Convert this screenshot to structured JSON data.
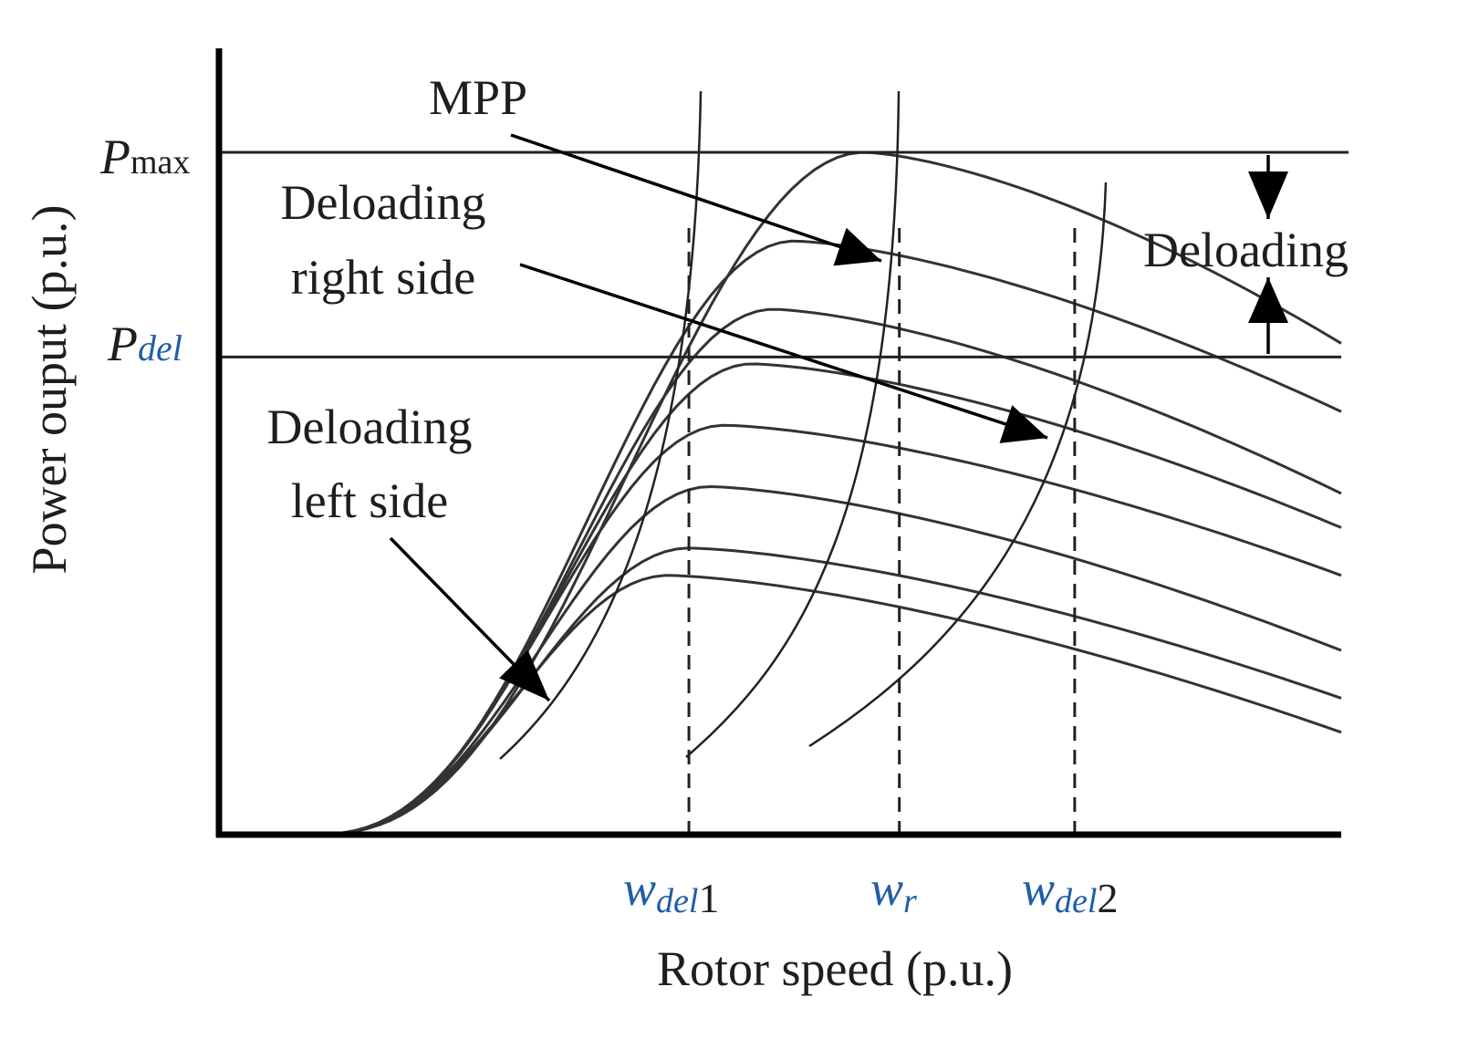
{
  "chart_data": {
    "type": "line",
    "title": "",
    "xlabel": "Rotor speed (p.u.)",
    "ylabel": "Power ouput (p.u.)",
    "xlim": [
      0,
      1.6
    ],
    "ylim": [
      0,
      1.0
    ],
    "grid": false,
    "wind_curves": {
      "count": 8,
      "start_speed": 0.13,
      "peak_powers": [
        1.0,
        0.87,
        0.77,
        0.69,
        0.6,
        0.51,
        0.42,
        0.38
      ],
      "peak_speeds": [
        0.92,
        0.82,
        0.79,
        0.76,
        0.72,
        0.7,
        0.67,
        0.64
      ],
      "end_powers": [
        0.72,
        0.62,
        0.5,
        0.45,
        0.38,
        0.27,
        0.2,
        0.15
      ],
      "end_speed": 1.6
    },
    "reference_lines": {
      "p_max": {
        "value": 1.0,
        "base": "P",
        "sub": "max"
      },
      "p_del": {
        "value": 0.7,
        "base": "P",
        "sub": "del"
      }
    },
    "speed_markers": [
      {
        "value": 0.67,
        "base": "w",
        "sub": "del",
        "suffix": "1"
      },
      {
        "value": 0.97,
        "base": "w",
        "sub": "r",
        "suffix": ""
      },
      {
        "value": 1.22,
        "base": "w",
        "sub": "del",
        "suffix": "2"
      }
    ],
    "annotations": {
      "mpp": "MPP",
      "deloading": "Deloading",
      "right_side_line1": "Deloading",
      "right_side_line2": "right side",
      "left_side_line1": "Deloading",
      "left_side_line2": "left side"
    }
  }
}
